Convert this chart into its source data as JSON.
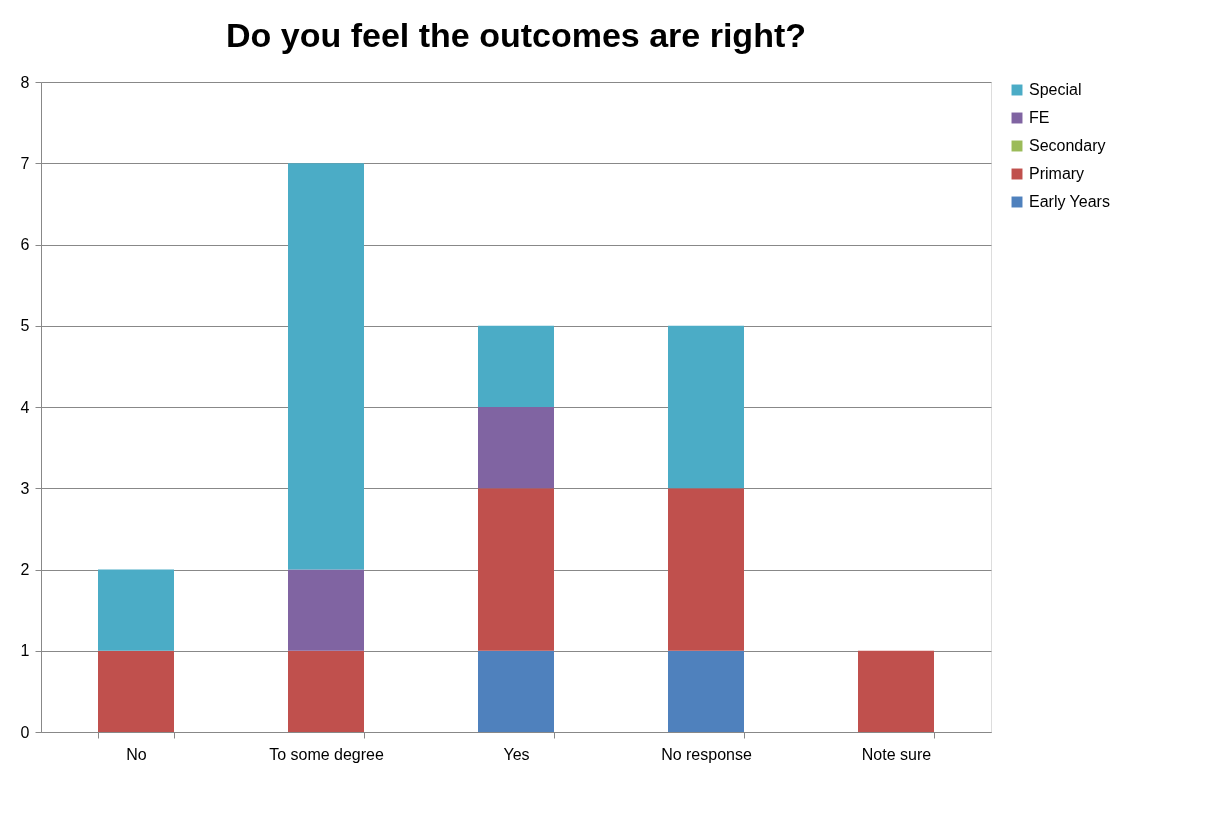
{
  "chart_data": {
    "type": "bar",
    "stacked": true,
    "title": "Do you feel the outcomes are right?",
    "categories": [
      "No",
      "To some degree",
      "Yes",
      "No response",
      "Note sure"
    ],
    "series": [
      {
        "name": "Early Years",
        "color": "#4f81bd",
        "values": [
          0,
          0,
          1,
          1,
          0
        ]
      },
      {
        "name": "Primary",
        "color": "#c0504d",
        "values": [
          1,
          1,
          2,
          2,
          1
        ]
      },
      {
        "name": "Secondary",
        "color": "#9bbb59",
        "values": [
          0,
          0,
          0,
          0,
          0
        ]
      },
      {
        "name": "FE",
        "color": "#8064a2",
        "values": [
          0,
          1,
          1,
          0,
          0
        ]
      },
      {
        "name": "Special",
        "color": "#4bacc6",
        "values": [
          1,
          5,
          1,
          2,
          0
        ]
      }
    ],
    "ylim": [
      0,
      8
    ],
    "yticks": [
      0,
      1,
      2,
      3,
      4,
      5,
      6,
      7,
      8
    ],
    "grid": "y",
    "legend": "right"
  }
}
